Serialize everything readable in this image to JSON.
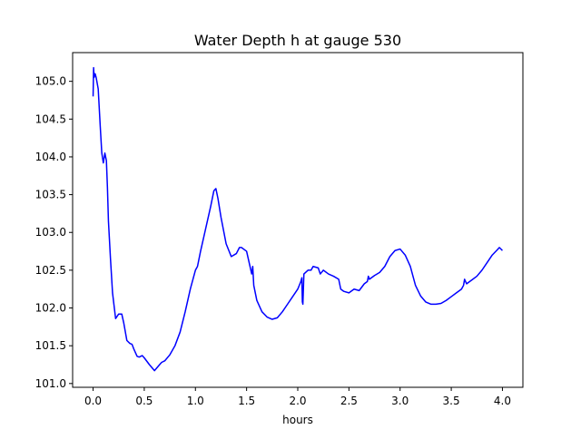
{
  "chart_data": {
    "type": "line",
    "title": "Water Depth h at gauge 530",
    "xlabel": "hours",
    "ylabel": "",
    "xlim": [
      -0.2,
      4.2
    ],
    "ylim": [
      100.95,
      105.38
    ],
    "xticks": [
      0.0,
      0.5,
      1.0,
      1.5,
      2.0,
      2.5,
      3.0,
      3.5,
      4.0
    ],
    "xtick_labels": [
      "0.0",
      "0.5",
      "1.0",
      "1.5",
      "2.0",
      "2.5",
      "3.0",
      "3.5",
      "4.0"
    ],
    "yticks": [
      101.0,
      101.5,
      102.0,
      102.5,
      103.0,
      103.5,
      104.0,
      104.5,
      105.0
    ],
    "ytick_labels": [
      "101.0",
      "101.5",
      "102.0",
      "102.5",
      "103.0",
      "103.5",
      "104.0",
      "104.5",
      "105.0"
    ],
    "grid": false,
    "series": [
      {
        "color": "#0000ff",
        "x": [
          0.0,
          0.005,
          0.01,
          0.02,
          0.03,
          0.05,
          0.07,
          0.085,
          0.1,
          0.115,
          0.13,
          0.14,
          0.15,
          0.17,
          0.19,
          0.22,
          0.25,
          0.28,
          0.3,
          0.33,
          0.36,
          0.38,
          0.4,
          0.43,
          0.45,
          0.48,
          0.5,
          0.55,
          0.6,
          0.65,
          0.67,
          0.7,
          0.75,
          0.8,
          0.85,
          0.9,
          0.95,
          1.0,
          1.02,
          1.05,
          1.1,
          1.15,
          1.18,
          1.2,
          1.22,
          1.25,
          1.3,
          1.35,
          1.4,
          1.43,
          1.45,
          1.5,
          1.55,
          1.56,
          1.57,
          1.6,
          1.65,
          1.7,
          1.75,
          1.8,
          1.85,
          1.9,
          1.95,
          2.0,
          2.03,
          2.04,
          2.045,
          2.05,
          2.06,
          2.1,
          2.13,
          2.15,
          2.2,
          2.22,
          2.25,
          2.3,
          2.35,
          2.4,
          2.42,
          2.45,
          2.5,
          2.55,
          2.6,
          2.65,
          2.68,
          2.69,
          2.7,
          2.75,
          2.8,
          2.85,
          2.9,
          2.95,
          3.0,
          3.05,
          3.1,
          3.12,
          3.15,
          3.2,
          3.25,
          3.3,
          3.35,
          3.4,
          3.45,
          3.5,
          3.55,
          3.6,
          3.62,
          3.63,
          3.65,
          3.7,
          3.75,
          3.8,
          3.85,
          3.9,
          3.95,
          3.97,
          4.0
        ],
        "y": [
          104.8,
          105.18,
          105.05,
          105.1,
          105.05,
          104.9,
          104.4,
          104.05,
          103.92,
          104.05,
          103.95,
          103.6,
          103.15,
          102.65,
          102.2,
          101.86,
          101.92,
          101.92,
          101.8,
          101.57,
          101.53,
          101.52,
          101.45,
          101.36,
          101.35,
          101.37,
          101.34,
          101.25,
          101.17,
          101.25,
          101.28,
          101.3,
          101.38,
          101.5,
          101.68,
          101.95,
          102.25,
          102.5,
          102.55,
          102.75,
          103.05,
          103.35,
          103.55,
          103.58,
          103.45,
          103.2,
          102.85,
          102.68,
          102.72,
          102.8,
          102.8,
          102.75,
          102.45,
          102.55,
          102.3,
          102.1,
          101.95,
          101.88,
          101.85,
          101.87,
          101.95,
          102.05,
          102.15,
          102.25,
          102.35,
          102.4,
          102.08,
          102.05,
          102.45,
          102.5,
          102.5,
          102.55,
          102.53,
          102.45,
          102.5,
          102.45,
          102.42,
          102.38,
          102.25,
          102.22,
          102.2,
          102.25,
          102.23,
          102.32,
          102.35,
          102.42,
          102.38,
          102.43,
          102.47,
          102.55,
          102.68,
          102.76,
          102.78,
          102.7,
          102.55,
          102.45,
          102.3,
          102.16,
          102.08,
          102.05,
          102.05,
          102.06,
          102.1,
          102.15,
          102.2,
          102.25,
          102.3,
          102.38,
          102.32,
          102.37,
          102.42,
          102.5,
          102.6,
          102.7,
          102.77,
          102.8,
          102.76
        ]
      }
    ]
  }
}
